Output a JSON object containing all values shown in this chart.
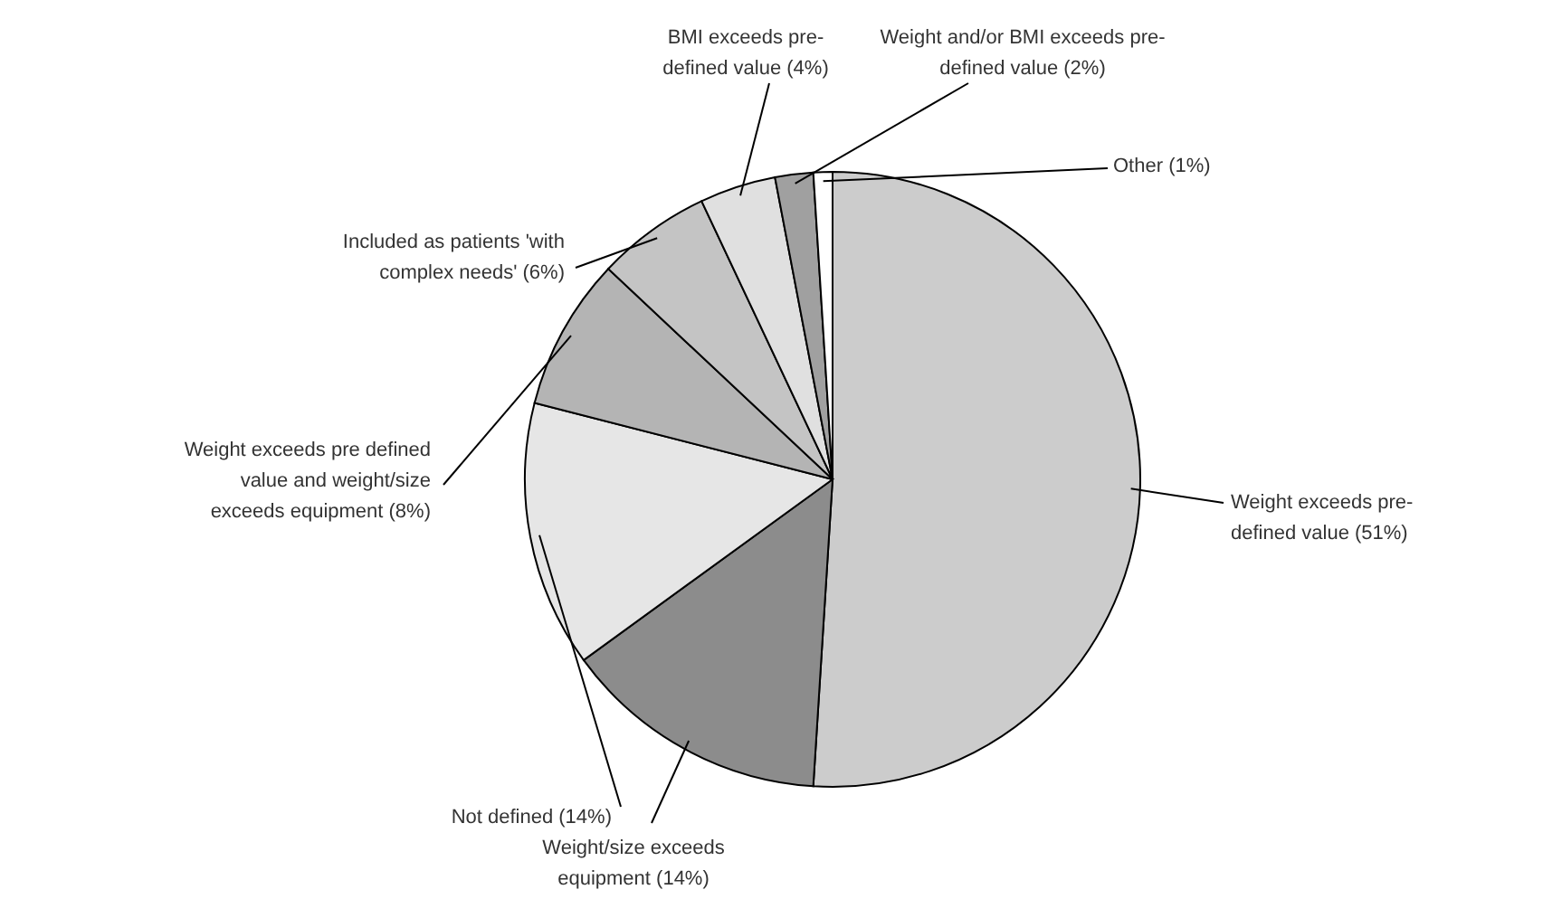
{
  "chart_data": {
    "type": "pie",
    "categories": [
      "Weight exceeds pre-defined value",
      "Weight/size exceeds equipment",
      "Not defined",
      "Weight exceeds pre defined value and weight/size exceeds equipment",
      "Included as patients 'with complex needs'",
      "BMI exceeds pre-defined value",
      "Weight and/or BMI exceeds pre-defined value",
      "Other"
    ],
    "values": [
      51,
      14,
      14,
      8,
      6,
      4,
      2,
      1
    ],
    "value_labels": [
      "(51%)",
      "(14%)",
      "(14%)",
      "(8%)",
      "(6%)",
      "(4%)",
      "(2%)",
      "(1%)"
    ],
    "colors": [
      "#cccccc",
      "#8c8c8c",
      "#e6e6e6",
      "#b4b4b4",
      "#c4c4c4",
      "#e0e0e0",
      "#a0a0a0",
      "#ffffff"
    ]
  }
}
